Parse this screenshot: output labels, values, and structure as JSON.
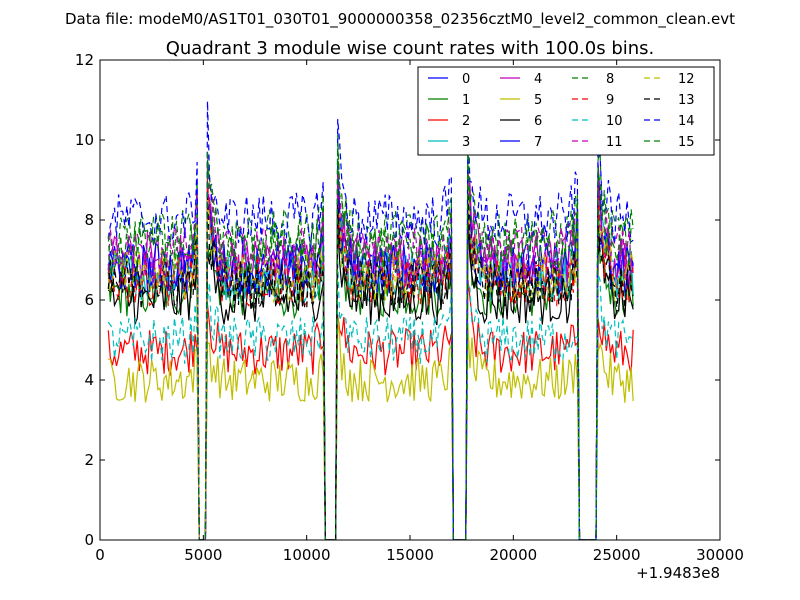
{
  "figure": {
    "suptitle": "Data file: modeM0/AS1T01_030T01_9000000358_02356cztM0_level2_common_clean.evt",
    "title": "Quadrant 3 module wise count rates with 100.0s bins.",
    "x_offset_label": "+1.9483e8"
  },
  "chart_data": {
    "type": "line",
    "title": "Quadrant 3 module wise count rates with 100.0s bins.",
    "xlabel": "",
    "ylabel": "",
    "xlim": [
      0,
      30000
    ],
    "ylim": [
      0,
      12
    ],
    "x_ticks": [
      "0",
      "5000",
      "10000",
      "15000",
      "20000",
      "25000",
      "30000"
    ],
    "y_ticks": [
      "0",
      "2",
      "4",
      "6",
      "8",
      "10",
      "12"
    ],
    "grid": false,
    "legend_position": "top-right",
    "bin_seconds": 100,
    "x_start": 400,
    "x_end": 25800,
    "gaps": [
      [
        4700,
        5200
      ],
      [
        10800,
        11500
      ],
      [
        17000,
        17800
      ],
      [
        23100,
        24100
      ]
    ],
    "series": [
      {
        "name": "0",
        "color": "#0000ff",
        "dash": "solid",
        "level": 6.7
      },
      {
        "name": "1",
        "color": "#008000",
        "dash": "solid",
        "level": 6.2
      },
      {
        "name": "2",
        "color": "#ff0000",
        "dash": "solid",
        "level": 4.7
      },
      {
        "name": "3",
        "color": "#00bfbf",
        "dash": "solid",
        "level": 6.6
      },
      {
        "name": "4",
        "color": "#bf00bf",
        "dash": "solid",
        "level": 7.0
      },
      {
        "name": "5",
        "color": "#bfbf00",
        "dash": "solid",
        "level": 4.0
      },
      {
        "name": "6",
        "color": "#000000",
        "dash": "solid",
        "level": 6.0
      },
      {
        "name": "7",
        "color": "#0000ff",
        "dash": "solid",
        "level": 6.8
      },
      {
        "name": "8",
        "color": "#008000",
        "dash": "dashed",
        "level": 7.6
      },
      {
        "name": "9",
        "color": "#ff0000",
        "dash": "dashed",
        "level": 6.5
      },
      {
        "name": "10",
        "color": "#00bfbf",
        "dash": "dashed",
        "level": 5.0
      },
      {
        "name": "11",
        "color": "#bf00bf",
        "dash": "dashed",
        "level": 7.2
      },
      {
        "name": "12",
        "color": "#bfbf00",
        "dash": "dashed",
        "level": 6.6
      },
      {
        "name": "13",
        "color": "#000000",
        "dash": "dashed",
        "level": 6.4
      },
      {
        "name": "14",
        "color": "#0000ff",
        "dash": "dashed",
        "level": 8.0
      },
      {
        "name": "15",
        "color": "#008000",
        "dash": "dashed",
        "level": 7.3
      }
    ]
  }
}
